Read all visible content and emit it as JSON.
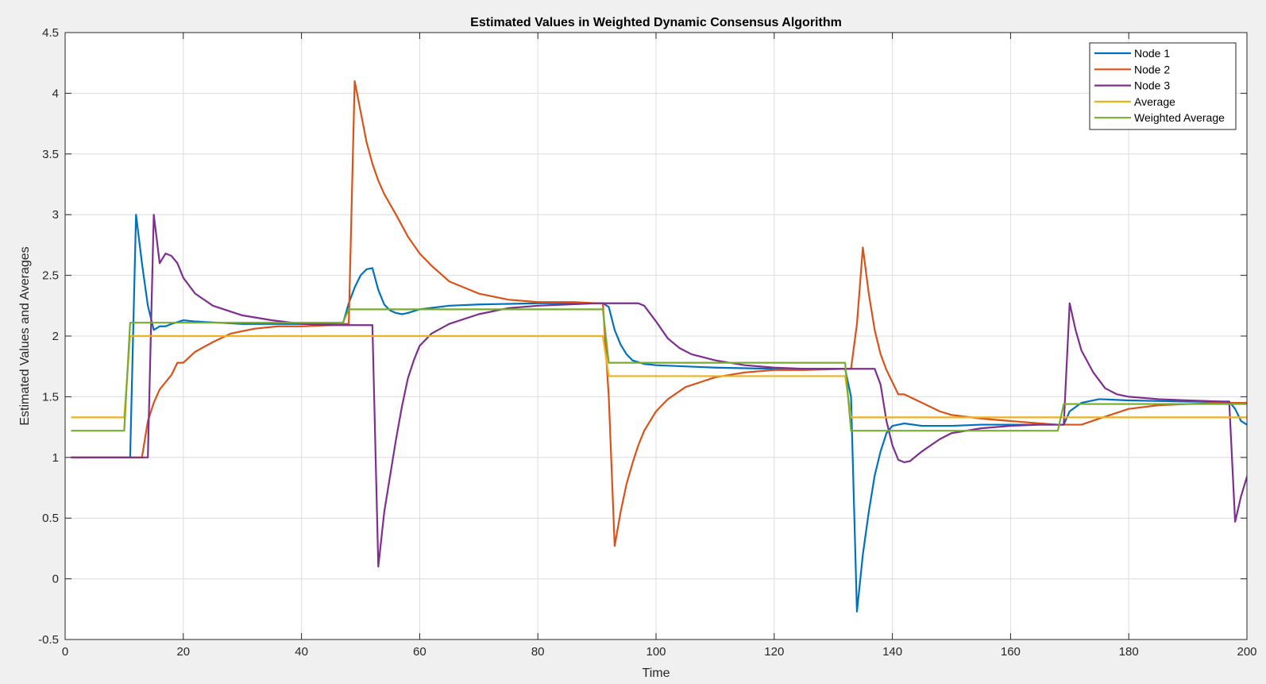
{
  "chart_data": {
    "type": "line",
    "title": "Estimated Values in Weighted Dynamic Consensus Algorithm",
    "xlabel": "Time",
    "ylabel": "Estimated Values and Averages",
    "xlim": [
      0,
      200
    ],
    "ylim": [
      -0.5,
      4.5
    ],
    "xticks": [
      0,
      20,
      40,
      60,
      80,
      100,
      120,
      140,
      160,
      180,
      200
    ],
    "yticks": [
      -0.5,
      0,
      0.5,
      1,
      1.5,
      2,
      2.5,
      3,
      3.5,
      4,
      4.5
    ],
    "grid": true,
    "legend_position": "top-right",
    "series": [
      {
        "name": "Node 1",
        "color": "#0072BD",
        "points": [
          [
            1,
            1
          ],
          [
            10,
            1
          ],
          [
            11,
            1
          ],
          [
            12,
            3.0
          ],
          [
            13,
            2.6
          ],
          [
            14,
            2.25
          ],
          [
            15,
            2.05
          ],
          [
            16,
            2.08
          ],
          [
            17,
            2.08
          ],
          [
            18,
            2.1
          ],
          [
            20,
            2.13
          ],
          [
            22,
            2.12
          ],
          [
            26,
            2.11
          ],
          [
            30,
            2.1
          ],
          [
            40,
            2.1
          ],
          [
            45,
            2.1
          ],
          [
            47,
            2.1
          ],
          [
            48,
            2.27
          ],
          [
            49,
            2.4
          ],
          [
            50,
            2.5
          ],
          [
            51,
            2.55
          ],
          [
            52,
            2.56
          ],
          [
            53,
            2.38
          ],
          [
            54,
            2.26
          ],
          [
            55,
            2.21
          ],
          [
            56,
            2.19
          ],
          [
            57,
            2.18
          ],
          [
            58,
            2.19
          ],
          [
            60,
            2.22
          ],
          [
            65,
            2.25
          ],
          [
            70,
            2.26
          ],
          [
            80,
            2.27
          ],
          [
            90,
            2.27
          ],
          [
            91,
            2.27
          ],
          [
            92,
            2.24
          ],
          [
            93,
            2.05
          ],
          [
            94,
            1.93
          ],
          [
            95,
            1.85
          ],
          [
            96,
            1.8
          ],
          [
            98,
            1.77
          ],
          [
            100,
            1.76
          ],
          [
            110,
            1.74
          ],
          [
            120,
            1.73
          ],
          [
            132,
            1.73
          ],
          [
            133,
            1.5
          ],
          [
            134,
            -0.27
          ],
          [
            135,
            0.2
          ],
          [
            136,
            0.55
          ],
          [
            137,
            0.85
          ],
          [
            138,
            1.05
          ],
          [
            139,
            1.2
          ],
          [
            140,
            1.26
          ],
          [
            142,
            1.28
          ],
          [
            145,
            1.26
          ],
          [
            150,
            1.26
          ],
          [
            155,
            1.27
          ],
          [
            160,
            1.27
          ],
          [
            168,
            1.27
          ],
          [
            169,
            1.27
          ],
          [
            170,
            1.38
          ],
          [
            172,
            1.45
          ],
          [
            175,
            1.48
          ],
          [
            180,
            1.47
          ],
          [
            190,
            1.46
          ],
          [
            197,
            1.46
          ],
          [
            198,
            1.4
          ],
          [
            199,
            1.3
          ],
          [
            200,
            1.27
          ]
        ]
      },
      {
        "name": "Node 2",
        "color": "#D95319",
        "points": [
          [
            1,
            1
          ],
          [
            12,
            1
          ],
          [
            13,
            1
          ],
          [
            14,
            1.3
          ],
          [
            15,
            1.45
          ],
          [
            16,
            1.56
          ],
          [
            17,
            1.62
          ],
          [
            18,
            1.68
          ],
          [
            19,
            1.78
          ],
          [
            20,
            1.78
          ],
          [
            22,
            1.87
          ],
          [
            25,
            1.95
          ],
          [
            28,
            2.02
          ],
          [
            32,
            2.06
          ],
          [
            36,
            2.08
          ],
          [
            40,
            2.08
          ],
          [
            45,
            2.09
          ],
          [
            47,
            2.1
          ],
          [
            48,
            2.1
          ],
          [
            49,
            4.1
          ],
          [
            50,
            3.85
          ],
          [
            51,
            3.6
          ],
          [
            52,
            3.42
          ],
          [
            53,
            3.28
          ],
          [
            54,
            3.17
          ],
          [
            56,
            3.0
          ],
          [
            58,
            2.82
          ],
          [
            60,
            2.68
          ],
          [
            62,
            2.58
          ],
          [
            65,
            2.45
          ],
          [
            70,
            2.35
          ],
          [
            75,
            2.3
          ],
          [
            80,
            2.28
          ],
          [
            86,
            2.28
          ],
          [
            90,
            2.27
          ],
          [
            91,
            2.27
          ],
          [
            92,
            1.5
          ],
          [
            93,
            0.27
          ],
          [
            94,
            0.55
          ],
          [
            95,
            0.78
          ],
          [
            96,
            0.95
          ],
          [
            97,
            1.1
          ],
          [
            98,
            1.22
          ],
          [
            100,
            1.38
          ],
          [
            102,
            1.48
          ],
          [
            105,
            1.58
          ],
          [
            110,
            1.66
          ],
          [
            115,
            1.7
          ],
          [
            120,
            1.72
          ],
          [
            125,
            1.72
          ],
          [
            132,
            1.73
          ],
          [
            133,
            1.73
          ],
          [
            134,
            2.1
          ],
          [
            135,
            2.73
          ],
          [
            136,
            2.35
          ],
          [
            137,
            2.05
          ],
          [
            138,
            1.85
          ],
          [
            139,
            1.72
          ],
          [
            141,
            1.52
          ],
          [
            142,
            1.52
          ],
          [
            145,
            1.45
          ],
          [
            148,
            1.38
          ],
          [
            150,
            1.35
          ],
          [
            155,
            1.32
          ],
          [
            160,
            1.3
          ],
          [
            165,
            1.28
          ],
          [
            168,
            1.27
          ],
          [
            172,
            1.27
          ],
          [
            175,
            1.32
          ],
          [
            180,
            1.4
          ],
          [
            185,
            1.43
          ],
          [
            190,
            1.44
          ],
          [
            195,
            1.45
          ],
          [
            200,
            1.45
          ]
        ]
      },
      {
        "name": "Node 3",
        "color": "#7E2F8E",
        "points": [
          [
            1,
            1
          ],
          [
            13,
            1
          ],
          [
            14,
            1
          ],
          [
            15,
            3.0
          ],
          [
            16,
            2.6
          ],
          [
            17,
            2.68
          ],
          [
            18,
            2.66
          ],
          [
            19,
            2.6
          ],
          [
            20,
            2.48
          ],
          [
            22,
            2.35
          ],
          [
            25,
            2.25
          ],
          [
            30,
            2.17
          ],
          [
            35,
            2.13
          ],
          [
            40,
            2.1
          ],
          [
            45,
            2.09
          ],
          [
            50,
            2.09
          ],
          [
            51,
            2.09
          ],
          [
            52,
            2.09
          ],
          [
            53,
            0.1
          ],
          [
            54,
            0.55
          ],
          [
            55,
            0.85
          ],
          [
            56,
            1.15
          ],
          [
            57,
            1.42
          ],
          [
            58,
            1.65
          ],
          [
            59,
            1.8
          ],
          [
            60,
            1.92
          ],
          [
            62,
            2.02
          ],
          [
            65,
            2.1
          ],
          [
            70,
            2.18
          ],
          [
            75,
            2.23
          ],
          [
            80,
            2.25
          ],
          [
            85,
            2.26
          ],
          [
            90,
            2.27
          ],
          [
            95,
            2.27
          ],
          [
            97,
            2.27
          ],
          [
            98,
            2.25
          ],
          [
            100,
            2.12
          ],
          [
            102,
            1.98
          ],
          [
            104,
            1.9
          ],
          [
            106,
            1.85
          ],
          [
            110,
            1.8
          ],
          [
            115,
            1.76
          ],
          [
            120,
            1.74
          ],
          [
            125,
            1.73
          ],
          [
            130,
            1.73
          ],
          [
            137,
            1.73
          ],
          [
            138,
            1.6
          ],
          [
            139,
            1.3
          ],
          [
            140,
            1.1
          ],
          [
            141,
            0.98
          ],
          [
            142,
            0.96
          ],
          [
            143,
            0.97
          ],
          [
            145,
            1.05
          ],
          [
            148,
            1.15
          ],
          [
            150,
            1.2
          ],
          [
            155,
            1.24
          ],
          [
            160,
            1.26
          ],
          [
            165,
            1.27
          ],
          [
            169,
            1.27
          ],
          [
            170,
            2.27
          ],
          [
            171,
            2.05
          ],
          [
            172,
            1.88
          ],
          [
            174,
            1.7
          ],
          [
            176,
            1.57
          ],
          [
            178,
            1.52
          ],
          [
            180,
            1.5
          ],
          [
            185,
            1.48
          ],
          [
            190,
            1.47
          ],
          [
            196,
            1.46
          ],
          [
            197,
            1.46
          ],
          [
            198,
            0.47
          ],
          [
            199,
            0.68
          ],
          [
            200,
            0.84
          ],
          [
            201,
            0.95
          ]
        ]
      },
      {
        "name": "Average",
        "color": "#EDB120",
        "points": [
          [
            1,
            1.33
          ],
          [
            10,
            1.33
          ],
          [
            11,
            2.0
          ],
          [
            91,
            2.0
          ],
          [
            92,
            1.67
          ],
          [
            132,
            1.67
          ],
          [
            133,
            1.33
          ],
          [
            201,
            1.33
          ]
        ]
      },
      {
        "name": "Weighted Average",
        "color": "#77AC30",
        "points": [
          [
            1,
            1.22
          ],
          [
            10,
            1.22
          ],
          [
            11,
            2.11
          ],
          [
            47,
            2.11
          ],
          [
            48,
            2.22
          ],
          [
            91,
            2.22
          ],
          [
            92,
            1.78
          ],
          [
            132,
            1.78
          ],
          [
            133,
            1.22
          ],
          [
            168,
            1.22
          ],
          [
            169,
            1.44
          ],
          [
            201,
            1.44
          ]
        ]
      }
    ]
  }
}
